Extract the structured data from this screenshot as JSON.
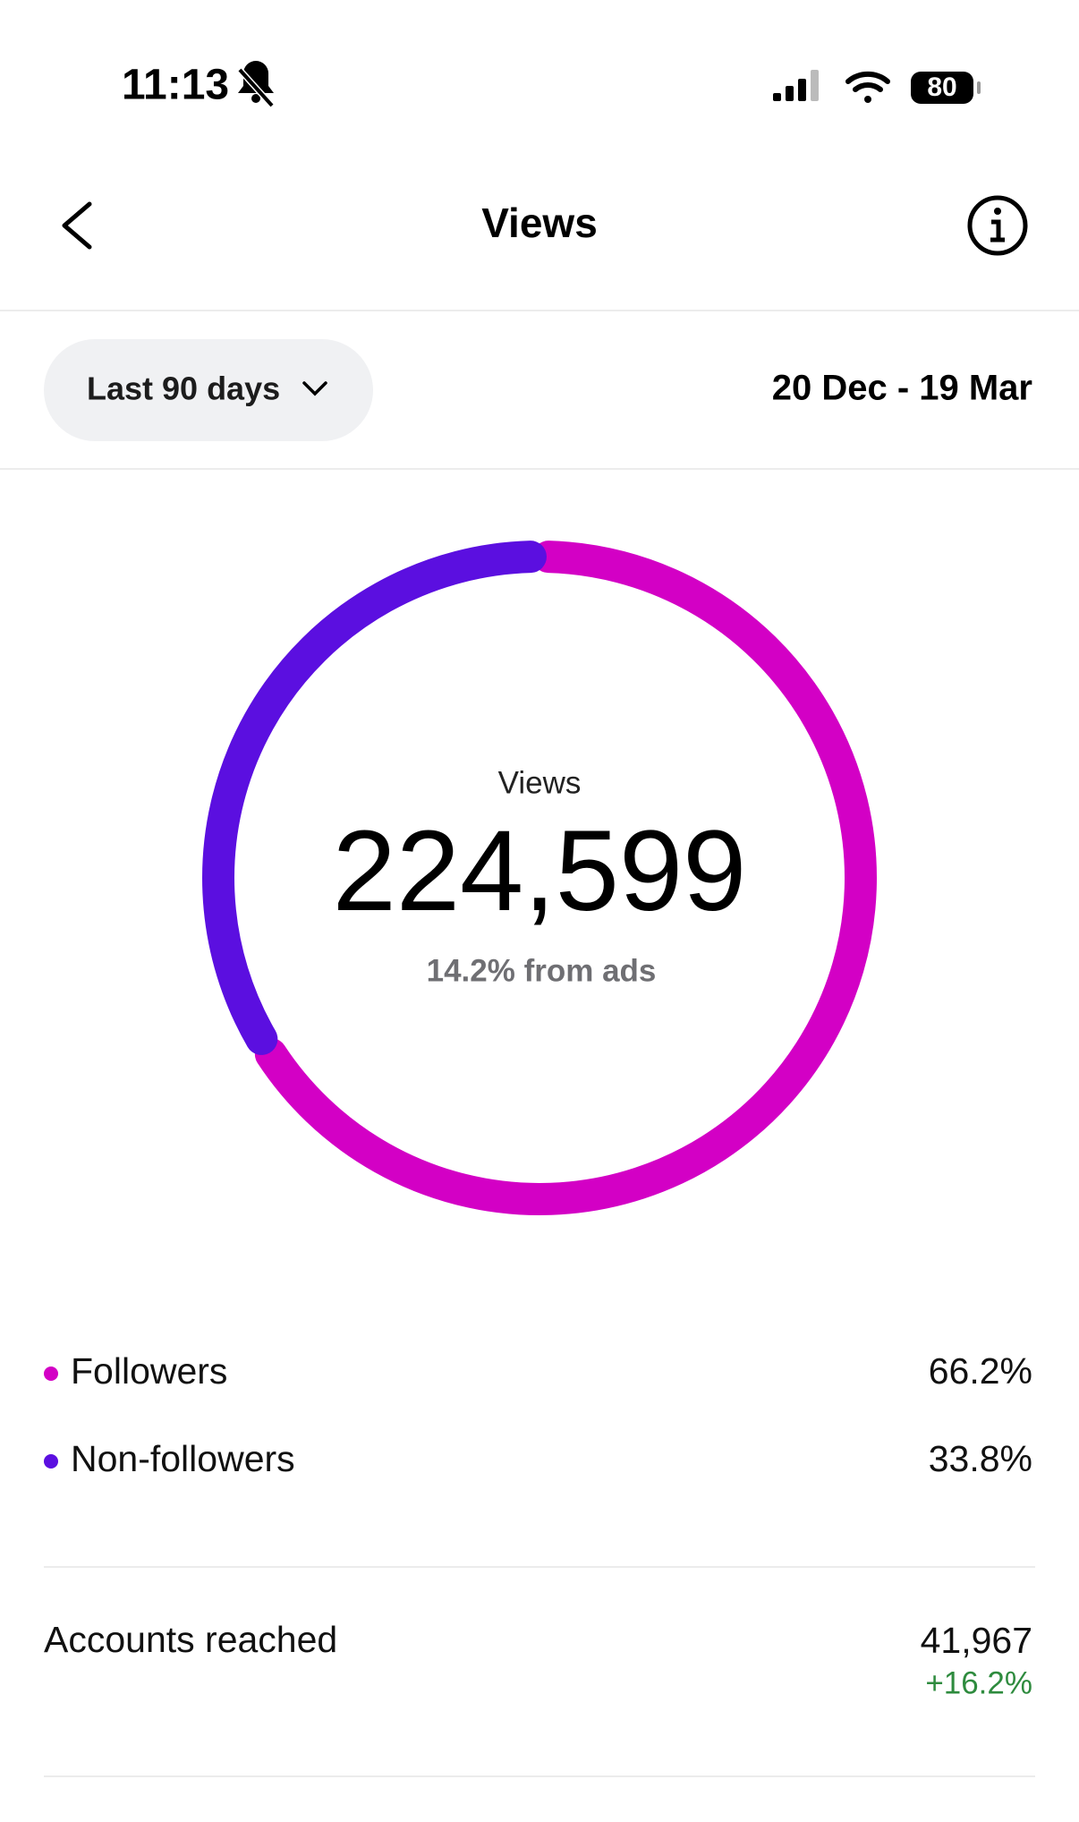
{
  "status_bar": {
    "time": "11:13",
    "battery": "80"
  },
  "header": {
    "title": "Views"
  },
  "filter": {
    "range": "Last 90 days",
    "dates": "20 Dec - 19 Mar"
  },
  "chart_data": {
    "type": "donut",
    "title": "Views",
    "total": "224,599",
    "subtitle": "14.2% from ads",
    "categories": [
      "Followers",
      "Non-followers"
    ],
    "values": [
      66.2,
      33.8
    ],
    "value_labels": [
      "66.2%",
      "33.8%"
    ],
    "colors": [
      "#d300c5",
      "#5b0fe0"
    ]
  },
  "accounts_reached": {
    "label": "Accounts reached",
    "value": "41,967",
    "change": "+16.2%"
  }
}
